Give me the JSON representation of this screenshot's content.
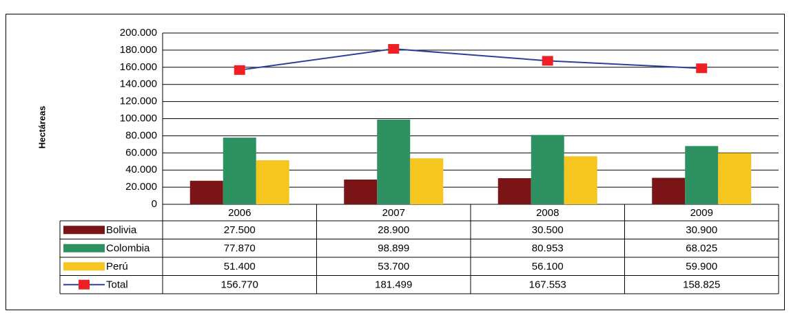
{
  "chart_data": {
    "type": "bar-line",
    "y_label": "Hectáreas",
    "categories": [
      "2006",
      "2007",
      "2008",
      "2009"
    ],
    "series": [
      {
        "name": "Bolivia",
        "color": "#7b1416",
        "values": [
          27500,
          28900,
          30500,
          30900
        ],
        "value_labels": [
          "27.500",
          "28.900",
          "30.500",
          "30.900"
        ]
      },
      {
        "name": "Colombia",
        "color": "#2e9162",
        "values": [
          77870,
          98899,
          80953,
          68025
        ],
        "value_labels": [
          "77.870",
          "98.899",
          "80.953",
          "68.025"
        ]
      },
      {
        "name": "Perú",
        "color": "#f5c520",
        "values": [
          51400,
          53700,
          56100,
          59900
        ],
        "value_labels": [
          "51.400",
          "53.700",
          "56.100",
          "59.900"
        ]
      },
      {
        "name": "Total",
        "color": "#2b3f9a",
        "marker_color": "#ee2024",
        "type": "line",
        "values": [
          156770,
          181499,
          167553,
          158825
        ],
        "value_labels": [
          "156.770",
          "181.499",
          "167.553",
          "158.825"
        ]
      }
    ],
    "ylim": [
      0,
      200000
    ],
    "yticks": [
      0,
      {
        "value": 20000,
        "label": "20.000"
      },
      {
        "value": 40000,
        "label": "40.000"
      },
      {
        "value": 60000,
        "label": "60.000"
      },
      {
        "value": 80000,
        "label": "80.000"
      },
      {
        "value": 100000,
        "label": "100.000"
      },
      {
        "value": 120000,
        "label": "120.000"
      },
      {
        "value": 140000,
        "label": "140.000"
      },
      {
        "value": 160000,
        "label": "160.000"
      },
      {
        "value": 180000,
        "label": "180.000"
      },
      {
        "value": 200000,
        "label": "200.000"
      }
    ],
    "grid": true
  }
}
